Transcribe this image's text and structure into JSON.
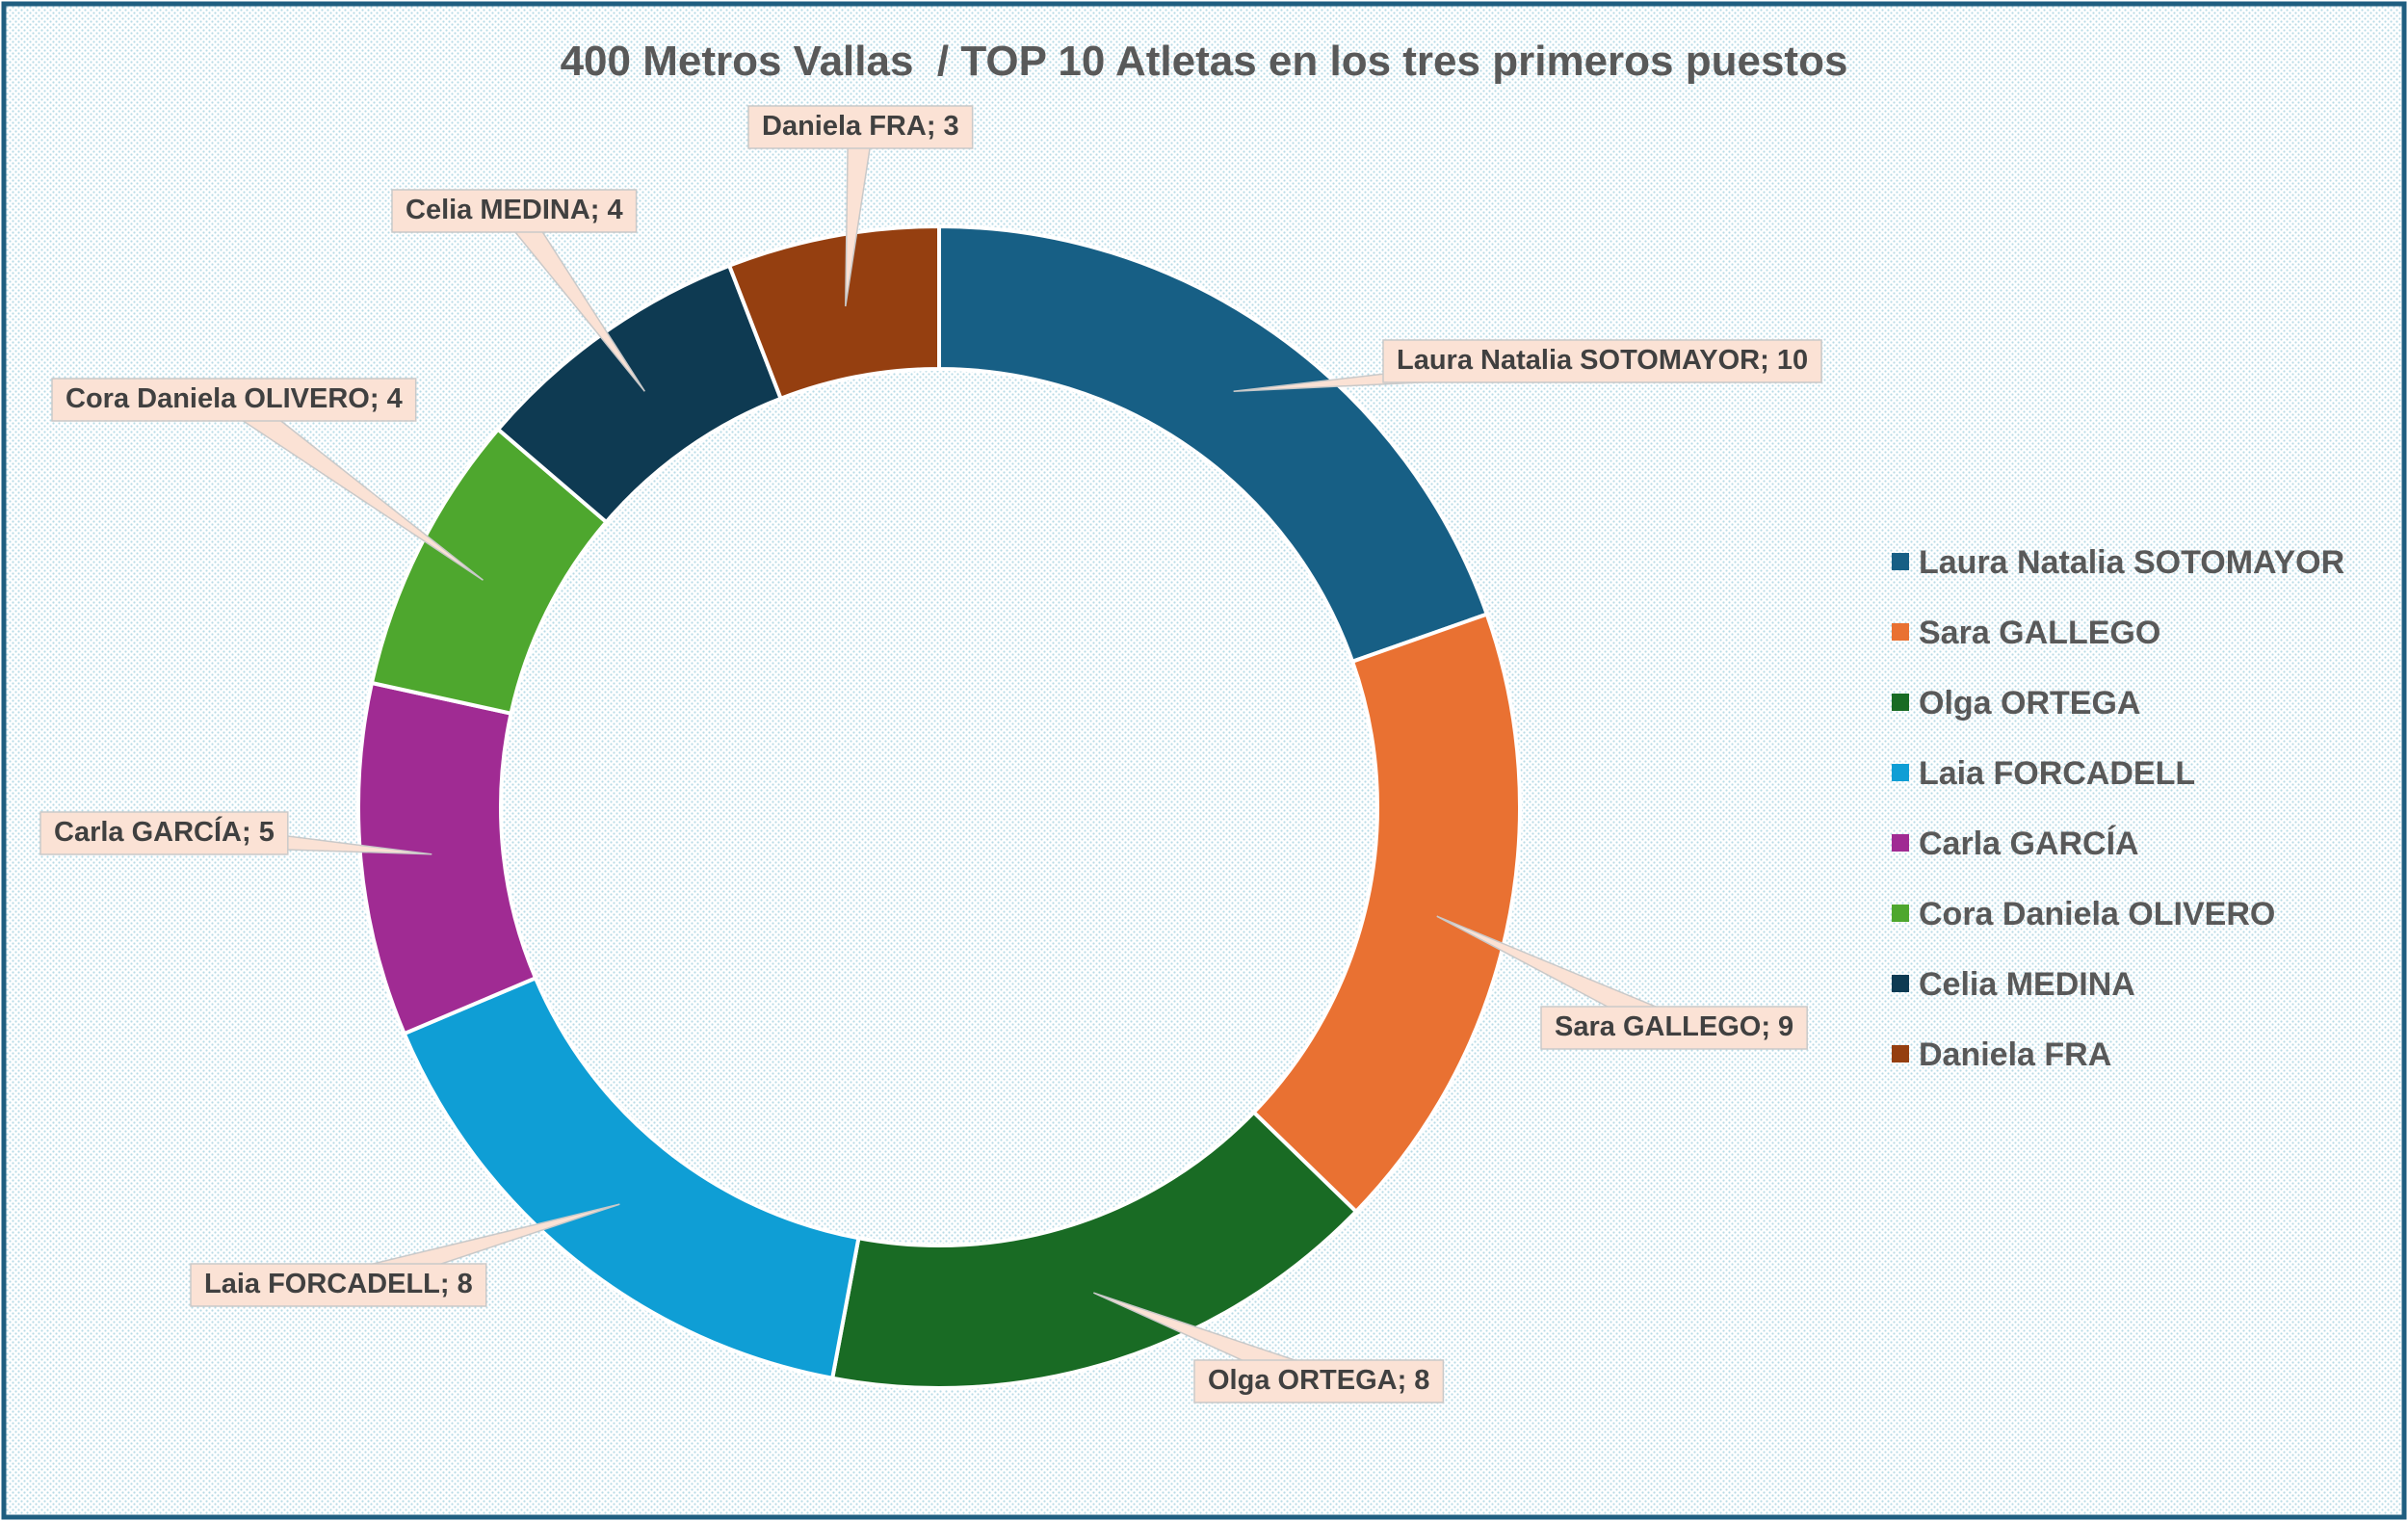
{
  "chart_data": {
    "type": "pie",
    "variant": "doughnut",
    "title": "400 Metros Vallas  / TOP 10 Atletas en los tres primeros puestos",
    "categories": [
      "Laura Natalia SOTOMAYOR",
      "Sara GALLEGO",
      "Olga ORTEGA",
      "Laia FORCADELL",
      "Carla GARCÍA",
      "Cora Daniela OLIVERO",
      "Celia MEDINA",
      "Daniela FRA"
    ],
    "values": [
      10,
      9,
      8,
      8,
      5,
      4,
      4,
      3
    ],
    "colors": [
      "#175F85",
      "#E97132",
      "#196B24",
      "#0F9ED5",
      "#A02B93",
      "#4EA72E",
      "#0E3A52",
      "#953F10"
    ],
    "data_labels": [
      "Laura Natalia SOTOMAYOR; 10",
      "Sara GALLEGO; 9",
      "Olga ORTEGA; 8",
      "Laia FORCADELL; 8",
      "Carla GARCÍA; 5",
      "Cora Daniela OLIVERO; 4",
      "Celia MEDINA; 4",
      "Daniela FRA; 3"
    ],
    "legend_position": "right",
    "label_background": "#FBE2D5",
    "background": "#DDEFF5",
    "frame_color": "#1F5E80"
  }
}
